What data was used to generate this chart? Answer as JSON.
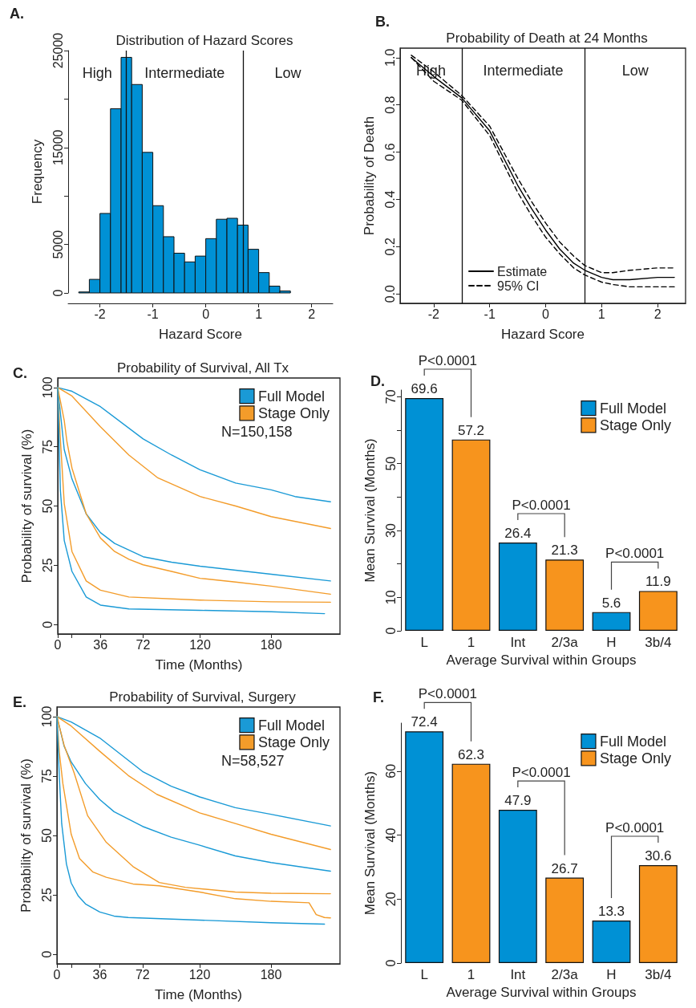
{
  "chart_data": [
    {
      "type": "histogram",
      "title": "Distribution of Hazard Scores",
      "xlabel": "Hazard Score",
      "ylabel": "Frequency",
      "color": "#0091d5",
      "bins": [
        -2.4,
        -2.2,
        -2.0,
        -1.8,
        -1.6,
        -1.4,
        -1.2,
        -1.0,
        -0.8,
        -0.6,
        -0.4,
        -0.2,
        0,
        0.2,
        0.4,
        0.6,
        0.8,
        1.0,
        1.2,
        1.4,
        1.6
      ],
      "values": [
        100,
        1400,
        8200,
        19000,
        24300,
        21500,
        14500,
        9000,
        5800,
        4100,
        3200,
        3800,
        5600,
        7600,
        7700,
        7000,
        4500,
        2100,
        700,
        200
      ],
      "xlim": [
        -2.6,
        2.4
      ],
      "xticks": [
        -2,
        -1,
        0,
        1,
        2
      ],
      "ylim": [
        0,
        25000
      ],
      "yticks": [
        0,
        5000,
        {
          "value": 10000,
          "label": null
        },
        15000,
        {
          "value": 20000,
          "label": null
        },
        25000
      ],
      "ref_lines": [
        {
          "axis": "x",
          "value": -1.5
        },
        {
          "axis": "x",
          "value": 0.7
        }
      ],
      "annotations": [
        "A.",
        "High",
        "Intermediate",
        "Low"
      ]
    },
    {
      "type": "line",
      "title": "Probability of Death at 24 Months",
      "xlabel": "Hazard Score",
      "ylabel": "Probability of Death",
      "x": [
        -2.4,
        -2,
        -1.5,
        -1,
        -0.5,
        -0.25,
        0,
        0.25,
        0.5,
        0.7,
        1,
        1.2,
        1.5,
        2,
        2.3
      ],
      "series": [
        {
          "name": "Estimate",
          "color": "#000000",
          "line_style": "solid",
          "values": [
            1.0,
            0.92,
            0.83,
            0.69,
            0.46,
            0.36,
            0.27,
            0.19,
            0.13,
            0.1,
            0.07,
            0.06,
            0.06,
            0.07,
            0.07
          ]
        },
        {
          "name": "95% CI",
          "color": "#000000",
          "line_style": "dashed",
          "values": [
            1.01,
            0.94,
            0.84,
            0.71,
            0.49,
            0.39,
            0.3,
            0.22,
            0.16,
            0.12,
            0.09,
            0.09,
            0.1,
            0.11,
            0.11
          ]
        },
        {
          "color": "#000000",
          "line_style": "dashed",
          "values": [
            1.0,
            0.9,
            0.82,
            0.67,
            0.43,
            0.33,
            0.24,
            0.17,
            0.11,
            0.08,
            0.05,
            0.04,
            0.03,
            0.03,
            0.03
          ]
        }
      ],
      "xlim": [
        -2.6,
        2.5
      ],
      "xticks": [
        -2,
        -1,
        0,
        1,
        2
      ],
      "ylim": [
        -0.04,
        1.04
      ],
      "yticks": [
        {
          "value": 0,
          "label": "0.0"
        },
        0.2,
        0.4,
        0.6,
        0.8,
        {
          "value": 1,
          "label": "1.0"
        }
      ],
      "legend": "bottom left",
      "marker": "none",
      "ref_lines": [
        {
          "axis": "x",
          "value": -1.5
        },
        {
          "axis": "x",
          "value": 0.7
        }
      ],
      "annotations": [
        "B.",
        "High",
        "Intermediate",
        "Low"
      ]
    },
    {
      "type": "line",
      "title": "Probability of Survival, All Tx",
      "xlabel": "Time (Months)",
      "ylabel": "Probability of survival (%)",
      "series": [
        {
          "name": "Full Model",
          "color": "#1a9ad6",
          "x": [
            0,
            12,
            36,
            72,
            96,
            120,
            150,
            180,
            200,
            230
          ],
          "values": [
            100,
            98.4,
            91.9,
            78.3,
            71.5,
            65.3,
            59.7,
            56.8,
            54,
            51.8
          ]
        },
        {
          "name": "Stage Only",
          "color": "#f39c2a",
          "x": [
            0,
            12,
            36,
            60,
            84,
            120,
            150,
            180,
            230
          ],
          "values": [
            100,
            96.4,
            83.4,
            71.5,
            62,
            54,
            50,
            45.5,
            40.5
          ]
        },
        {
          "color": "#1a9ad6",
          "x": [
            0,
            5.5,
            12,
            24,
            36,
            48,
            72,
            96,
            120,
            150,
            180,
            230
          ],
          "values": [
            100,
            73.8,
            61.4,
            46.7,
            38.8,
            34.2,
            28.6,
            26.3,
            24.6,
            22.9,
            21.2,
            18.4
          ]
        },
        {
          "color": "#f39c2a",
          "x": [
            0,
            5.5,
            7.8,
            12,
            24,
            36,
            48,
            60,
            72,
            96,
            120,
            150,
            180,
            230
          ],
          "values": [
            100,
            86,
            77,
            66,
            46.7,
            36.5,
            30.8,
            27.5,
            25.2,
            22.4,
            19.5,
            17.9,
            16.2,
            12.8
          ]
        },
        {
          "color": "#f39c2a",
          "x": [
            0,
            2,
            5.5,
            12,
            24,
            36,
            60,
            120,
            180,
            230
          ],
          "values": [
            100,
            80,
            51,
            30.8,
            18.4,
            14.5,
            11.6,
            10.3,
            9.6,
            9.4
          ]
        },
        {
          "color": "#1a9ad6",
          "x": [
            0,
            2.2,
            5.5,
            12,
            24,
            36,
            60,
            120,
            180,
            225
          ],
          "values": [
            100,
            56.8,
            35.4,
            22.4,
            11.6,
            8.2,
            6.6,
            6,
            5.4,
            4.6
          ]
        }
      ],
      "xlim": [
        0,
        238
      ],
      "xticks": [
        0,
        {
          "value": 12,
          "label": null
        },
        36,
        72,
        120,
        180
      ],
      "ylim": [
        -4,
        104
      ],
      "yticks": [
        0,
        25,
        50,
        75,
        100
      ],
      "legend": "top right",
      "marker": "none",
      "annotations": [
        "C.",
        "N=150,158"
      ]
    },
    {
      "type": "bar",
      "xlabel": "Average Survival within Groups",
      "ylabel": "Mean Survival (Months)",
      "categories": [
        "L",
        "1",
        "Int",
        "2/3a",
        "H",
        "3b/4"
      ],
      "series": [
        {
          "name": "Full Model",
          "color": "#0091d5",
          "values": [
            69.6,
            null,
            26.4,
            null,
            5.6,
            null
          ]
        },
        {
          "name": "Stage Only",
          "color": "#f7941d",
          "values": [
            null,
            57.2,
            null,
            21.3,
            null,
            11.9
          ]
        }
      ],
      "ylim": [
        0,
        72
      ],
      "yticks": [
        0,
        10,
        {
          "value": 20,
          "label": null
        },
        30,
        {
          "value": 40,
          "label": null
        },
        50,
        {
          "value": 60,
          "label": null
        },
        70
      ],
      "data_labels": true,
      "legend": "top right",
      "annotations": [
        "D.",
        "P<0.0001",
        "P<0.0001",
        "P<0.0001"
      ]
    },
    {
      "type": "line",
      "title": "Probability of Survival, Surgery",
      "xlabel": "Time (Months)",
      "ylabel": "Probability of survival (%)",
      "series": [
        {
          "name": "Full Model",
          "color": "#1a9ad6",
          "x": [
            0,
            12,
            36,
            72,
            96,
            120,
            150,
            180,
            230
          ],
          "values": [
            100,
            97.7,
            91,
            76.9,
            70.7,
            66.2,
            61.7,
            58.9,
            54
          ]
        },
        {
          "name": "Stage Only",
          "color": "#f39c2a",
          "x": [
            0,
            12,
            36,
            60,
            84,
            120,
            150,
            180,
            230
          ],
          "values": [
            100,
            96,
            85.4,
            75.2,
            67.3,
            59.5,
            55,
            50.5,
            44.1
          ]
        },
        {
          "color": "#1a9ad6",
          "x": [
            0,
            6,
            12,
            24,
            36,
            48,
            72,
            96,
            120,
            150,
            180,
            230
          ],
          "values": [
            100,
            87.6,
            80.9,
            71.8,
            65.1,
            60,
            53.8,
            49.3,
            45.9,
            41.4,
            38.6,
            35
          ]
        },
        {
          "color": "#f39c2a",
          "x": [
            0,
            6,
            14.4,
            25.8,
            41.5,
            64,
            86,
            108,
            150,
            180,
            230
          ],
          "values": [
            100,
            88,
            76.4,
            58.3,
            47.1,
            36.9,
            30.2,
            28.2,
            26.2,
            25.7,
            25.5
          ]
        },
        {
          "color": "#f39c2a",
          "x": [
            0,
            2,
            5,
            12,
            19,
            30,
            41.5,
            64,
            86,
            120,
            150,
            180,
            212,
            218,
            225,
            230
          ],
          "values": [
            100,
            85,
            71.8,
            50.5,
            40.3,
            34.7,
            32.4,
            29.6,
            28.8,
            26.2,
            23.4,
            22.3,
            21.7,
            16.7,
            15.5,
            15.3
          ]
        },
        {
          "color": "#1a9ad6",
          "x": [
            0,
            2,
            4,
            8,
            12,
            18,
            24,
            36,
            48,
            60,
            120,
            180,
            225
          ],
          "values": [
            100,
            75,
            55,
            38,
            30,
            24.5,
            21.2,
            17.8,
            16.1,
            15.5,
            14.4,
            13.3,
            12.7
          ]
        }
      ],
      "xlim": [
        0,
        238
      ],
      "xticks": [
        0,
        {
          "value": 12,
          "label": null
        },
        36,
        72,
        120,
        180
      ],
      "ylim": [
        -4,
        104
      ],
      "yticks": [
        0,
        25,
        50,
        75,
        100
      ],
      "legend": "top right",
      "marker": "none",
      "annotations": [
        "E.",
        "N=58,527"
      ]
    },
    {
      "type": "bar",
      "xlabel": "Average Survival within Groups",
      "ylabel": "Mean Survival (Months)",
      "categories": [
        "L",
        "1",
        "Int",
        "2/3a",
        "H",
        "3b/4"
      ],
      "series": [
        {
          "name": "Full Model",
          "color": "#0091d5",
          "values": [
            72.4,
            null,
            47.9,
            null,
            13.3,
            null
          ]
        },
        {
          "name": "Stage Only",
          "color": "#f7941d",
          "values": [
            null,
            62.3,
            null,
            26.7,
            null,
            30.6
          ]
        }
      ],
      "ylim": [
        0,
        75
      ],
      "yticks": [
        0,
        20,
        40,
        60
      ],
      "data_labels": true,
      "legend": "top right",
      "annotations": [
        "F.",
        "P<0.0001",
        "P<0.0001",
        "P<0.0001"
      ]
    }
  ]
}
